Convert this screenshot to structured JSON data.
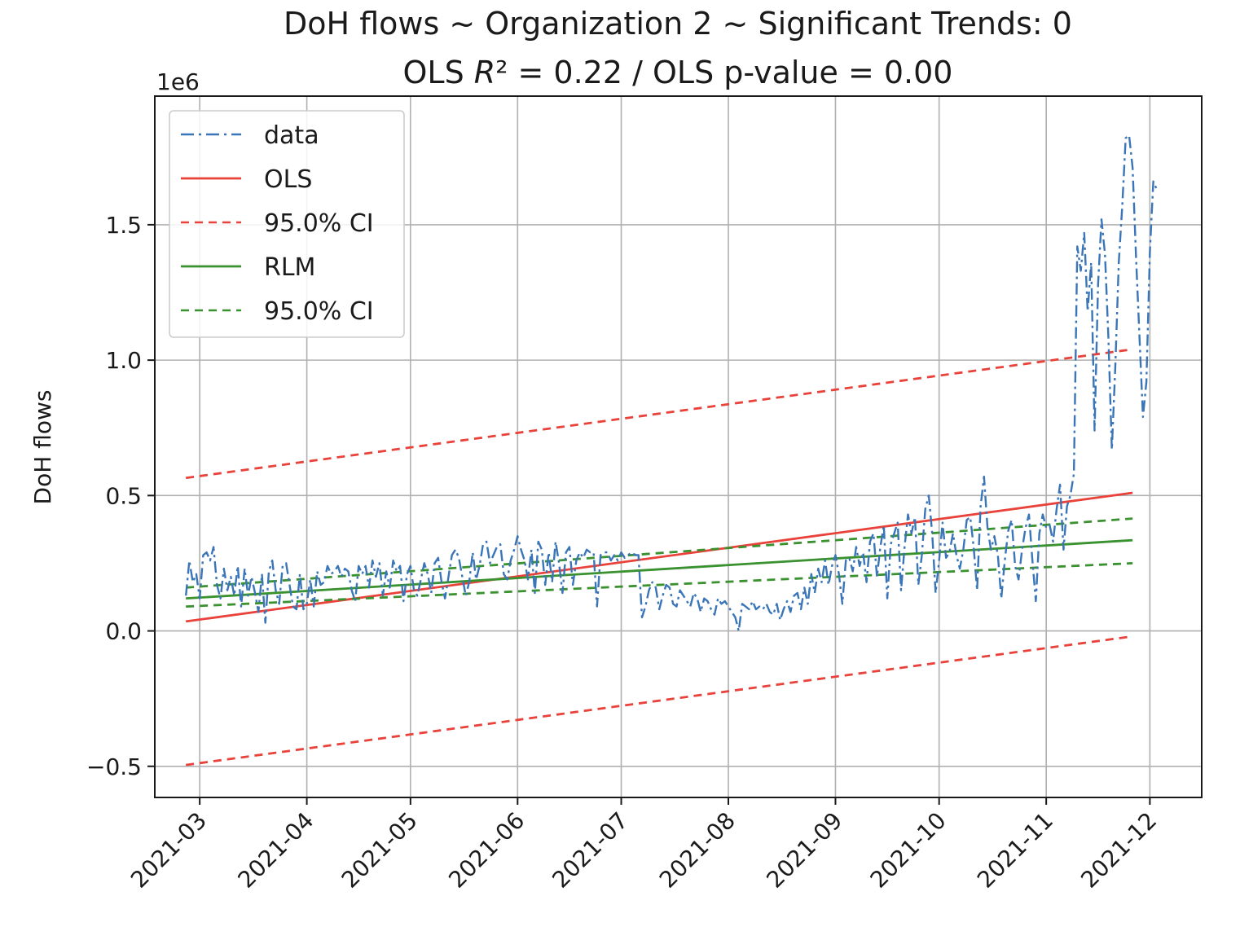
{
  "chart_data": {
    "type": "line",
    "title": "DoH flows ~ Organization 2 ~ Significant Trends: 0",
    "subtitle_parts": [
      "OLS ",
      "R",
      "² = 0.22 / OLS p-value = 0.00"
    ],
    "xlabel": "",
    "ylabel": "DoH flows",
    "y_offset_label": "1e6",
    "x_ticks": [
      "2021-03",
      "2021-04",
      "2021-05",
      "2021-06",
      "2021-07",
      "2021-08",
      "2021-09",
      "2021-10",
      "2021-11",
      "2021-12"
    ],
    "x_tick_days": [
      0,
      31,
      61,
      92,
      122,
      153,
      184,
      214,
      245,
      275
    ],
    "y_ticks": [
      -0.5,
      0.0,
      0.5,
      1.0,
      1.5
    ],
    "y_tick_labels": [
      "−0.5",
      "0.0",
      "0.5",
      "1.0",
      "1.5"
    ],
    "xlim_days": [
      -13,
      290
    ],
    "ylim": [
      -0.615,
      1.975
    ],
    "grid": true,
    "legend_location": "upper-left",
    "legend": [
      "data",
      "OLS",
      "95.0% CI",
      "RLM",
      "95.0% CI"
    ],
    "data_series": {
      "name": "data",
      "color": "#3a75b8",
      "start_day": -4,
      "x_unit": "days since 2021-03-01",
      "y_unit": "1e6",
      "values": [
        0.13,
        0.26,
        0.18,
        0.21,
        0.12,
        0.28,
        0.29,
        0.26,
        0.31,
        0.17,
        0.12,
        0.23,
        0.15,
        0.2,
        0.13,
        0.24,
        0.09,
        0.23,
        0.13,
        0.2,
        0.14,
        0.07,
        0.21,
        0.03,
        0.22,
        0.26,
        0.15,
        0.1,
        0.24,
        0.25,
        0.17,
        0.09,
        0.08,
        0.21,
        0.08,
        0.1,
        0.19,
        0.09,
        0.22,
        0.17,
        0.18,
        0.24,
        0.21,
        0.22,
        0.24,
        0.2,
        0.23,
        0.22,
        0.15,
        0.11,
        0.24,
        0.21,
        0.24,
        0.16,
        0.26,
        0.2,
        0.25,
        0.13,
        0.22,
        0.16,
        0.26,
        0.22,
        0.24,
        0.11,
        0.21,
        0.24,
        0.15,
        0.13,
        0.19,
        0.25,
        0.21,
        0.14,
        0.25,
        0.27,
        0.18,
        0.12,
        0.2,
        0.28,
        0.3,
        0.27,
        0.2,
        0.13,
        0.18,
        0.29,
        0.19,
        0.24,
        0.32,
        0.33,
        0.25,
        0.28,
        0.31,
        0.32,
        0.21,
        0.19,
        0.26,
        0.3,
        0.35,
        0.3,
        0.26,
        0.19,
        0.3,
        0.14,
        0.33,
        0.3,
        0.17,
        0.29,
        0.18,
        0.33,
        0.25,
        0.14,
        0.29,
        0.31,
        0.17,
        0.26,
        0.29,
        0.27,
        0.3,
        0.29,
        0.29,
        0.09,
        0.28,
        0.29,
        0.29,
        0.26,
        0.28,
        0.26,
        0.29,
        0.27,
        0.28,
        0.29,
        0.28,
        0.28,
        0.05,
        0.09,
        0.15,
        0.18,
        0.16,
        0.08,
        0.13,
        0.17,
        0.16,
        0.1,
        0.09,
        0.15,
        0.13,
        0.11,
        0.09,
        0.14,
        0.12,
        0.07,
        0.12,
        0.11,
        0.08,
        0.06,
        0.12,
        0.1,
        0.11,
        0.09,
        0.07,
        0.05,
        0.0,
        0.1,
        0.09,
        0.08,
        0.11,
        0.08,
        0.09,
        0.08,
        0.1,
        0.07,
        0.06,
        0.1,
        0.04,
        0.08,
        0.11,
        0.07,
        0.13,
        0.14,
        0.08,
        0.16,
        0.1,
        0.21,
        0.14,
        0.23,
        0.18,
        0.26,
        0.17,
        0.24,
        0.28,
        0.21,
        0.1,
        0.26,
        0.27,
        0.22,
        0.31,
        0.24,
        0.29,
        0.18,
        0.33,
        0.36,
        0.2,
        0.31,
        0.39,
        0.12,
        0.32,
        0.36,
        0.4,
        0.15,
        0.31,
        0.43,
        0.36,
        0.42,
        0.17,
        0.28,
        0.45,
        0.5,
        0.36,
        0.14,
        0.26,
        0.4,
        0.27,
        0.29,
        0.36,
        0.28,
        0.23,
        0.3,
        0.41,
        0.42,
        0.31,
        0.15,
        0.46,
        0.57,
        0.38,
        0.3,
        0.35,
        0.28,
        0.12,
        0.26,
        0.37,
        0.41,
        0.24,
        0.19,
        0.3,
        0.38,
        0.43,
        0.26,
        0.11,
        0.36,
        0.43,
        0.38,
        0.39,
        0.33,
        0.45,
        0.54,
        0.3,
        0.46,
        0.5,
        0.58,
        1.42,
        1.33,
        1.47,
        1.18,
        1.36,
        0.74,
        1.28,
        1.52,
        1.39,
        1.08,
        0.67,
        0.98,
        1.36,
        1.57,
        1.82,
        1.83,
        1.71,
        1.38,
        1.08,
        0.79,
        0.92,
        1.4,
        1.66,
        1.63
      ]
    },
    "lines": [
      {
        "name": "OLS",
        "color": "#e8423a",
        "dash": "",
        "from": [
          -4,
          0.035
        ],
        "to": [
          270,
          0.51
        ]
      },
      {
        "name": "OLS 95.0% CI upper",
        "color": "#e8423a",
        "dash": "10 7",
        "from": [
          -4,
          0.565
        ],
        "to": [
          270,
          1.04
        ]
      },
      {
        "name": "OLS 95.0% CI lower",
        "color": "#e8423a",
        "dash": "10 7",
        "from": [
          -4,
          -0.495
        ],
        "to": [
          270,
          -0.02
        ]
      },
      {
        "name": "RLM",
        "color": "#3a912f",
        "dash": "",
        "from": [
          -4,
          0.12
        ],
        "to": [
          270,
          0.335
        ]
      },
      {
        "name": "RLM 95.0% CI upper",
        "color": "#3a912f",
        "dash": "10 7",
        "from": [
          -4,
          0.16
        ],
        "to": [
          270,
          0.415
        ]
      },
      {
        "name": "RLM 95.0% CI lower",
        "color": "#3a912f",
        "dash": "10 7",
        "from": [
          -4,
          0.09
        ],
        "to": [
          270,
          0.25
        ]
      }
    ]
  }
}
